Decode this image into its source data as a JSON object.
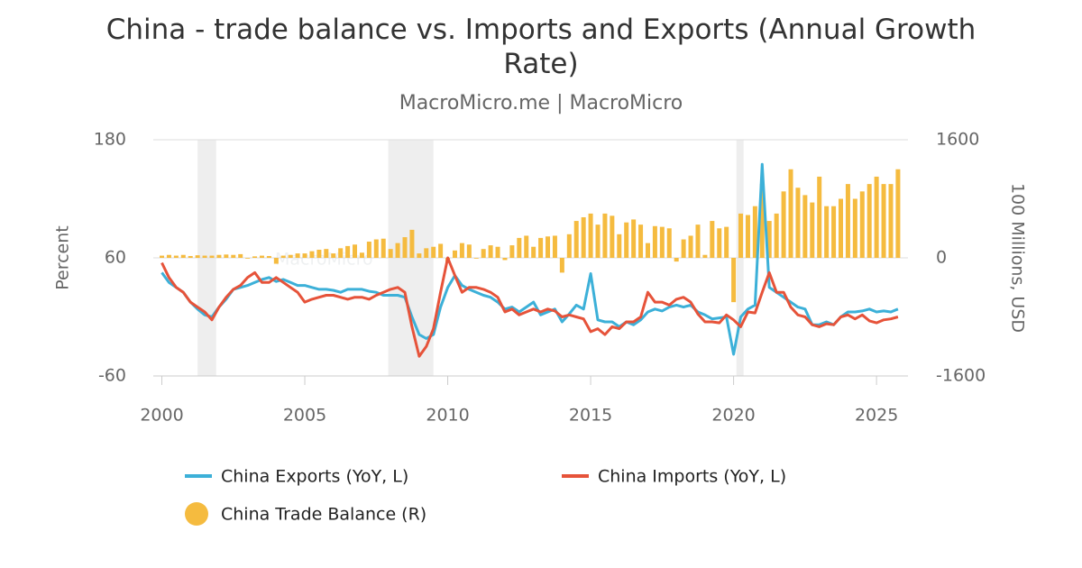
{
  "chart_data": {
    "type": "combo",
    "title": "China - trade balance vs. Imports and Exports (Annual Growth Rate)",
    "subtitle": "MacroMicro.me | MacroMicro",
    "watermark": "MacroMicro",
    "y_label": "Percent",
    "y2_label": "100 Millions, USD",
    "xlim": [
      1999.7,
      2026.1
    ],
    "xticks": [
      2000,
      2005,
      2010,
      2015,
      2020,
      2025
    ],
    "ylim": [
      -60,
      180
    ],
    "yticks": [
      -60,
      60,
      180
    ],
    "y2lim": [
      -1600,
      1600
    ],
    "y2ticks": [
      -1600,
      0,
      1600
    ],
    "grid": true,
    "shaded_ranges": [
      [
        2001.25,
        2001.9
      ],
      [
        2007.92,
        2009.5
      ],
      [
        2020.1,
        2020.35
      ]
    ],
    "x": [
      2000,
      2000.25,
      2000.5,
      2000.75,
      2001,
      2001.25,
      2001.5,
      2001.75,
      2002,
      2002.25,
      2002.5,
      2002.75,
      2003,
      2003.25,
      2003.5,
      2003.75,
      2004,
      2004.25,
      2004.5,
      2004.75,
      2005,
      2005.25,
      2005.5,
      2005.75,
      2006,
      2006.25,
      2006.5,
      2006.75,
      2007,
      2007.25,
      2007.5,
      2007.75,
      2008,
      2008.25,
      2008.5,
      2008.75,
      2009,
      2009.25,
      2009.5,
      2009.75,
      2010,
      2010.25,
      2010.5,
      2010.75,
      2011,
      2011.25,
      2011.5,
      2011.75,
      2012,
      2012.25,
      2012.5,
      2012.75,
      2013,
      2013.25,
      2013.5,
      2013.75,
      2014,
      2014.25,
      2014.5,
      2014.75,
      2015,
      2015.25,
      2015.5,
      2015.75,
      2016,
      2016.25,
      2016.5,
      2016.75,
      2017,
      2017.25,
      2017.5,
      2017.75,
      2018,
      2018.25,
      2018.5,
      2018.75,
      2019,
      2019.25,
      2019.5,
      2019.75,
      2020,
      2020.25,
      2020.5,
      2020.75,
      2021,
      2021.25,
      2021.5,
      2021.75,
      2022,
      2022.25,
      2022.5,
      2022.75,
      2023,
      2023.25,
      2023.5,
      2023.75,
      2024,
      2024.25,
      2024.5,
      2024.75,
      2025,
      2025.25,
      2025.5,
      2025.75
    ],
    "series": [
      {
        "name": "China Trade Balance (R)",
        "type": "bar",
        "axis": "y2",
        "color": "#f5bb3f",
        "values": [
          30,
          40,
          30,
          40,
          25,
          35,
          30,
          30,
          40,
          45,
          40,
          50,
          -10,
          20,
          30,
          25,
          -80,
          30,
          40,
          60,
          60,
          90,
          110,
          120,
          60,
          130,
          160,
          180,
          70,
          220,
          250,
          260,
          120,
          200,
          280,
          380,
          60,
          130,
          150,
          190,
          -70,
          100,
          200,
          180,
          -10,
          120,
          170,
          150,
          -30,
          170,
          270,
          300,
          150,
          270,
          290,
          300,
          -200,
          320,
          500,
          550,
          600,
          450,
          600,
          570,
          320,
          480,
          520,
          450,
          200,
          430,
          420,
          400,
          -50,
          250,
          300,
          450,
          40,
          500,
          400,
          420,
          -600,
          600,
          580,
          700,
          1000,
          500,
          600,
          900,
          1200,
          950,
          850,
          750,
          1100,
          700,
          700,
          800,
          1000,
          800,
          900,
          1000,
          1100,
          1000,
          1000,
          1200
        ]
      },
      {
        "name": "China Exports (YoY, L)",
        "type": "line",
        "color": "#3cb0d8",
        "values": [
          45,
          35,
          30,
          25,
          15,
          8,
          2,
          0,
          10,
          18,
          28,
          30,
          32,
          35,
          38,
          40,
          36,
          38,
          35,
          32,
          32,
          30,
          28,
          28,
          27,
          25,
          28,
          28,
          28,
          26,
          25,
          22,
          22,
          22,
          20,
          0,
          -18,
          -22,
          -18,
          10,
          30,
          42,
          32,
          28,
          25,
          22,
          20,
          15,
          8,
          10,
          5,
          10,
          15,
          2,
          5,
          8,
          -5,
          3,
          12,
          8,
          44,
          -3,
          -5,
          -5,
          -10,
          -5,
          -8,
          -3,
          5,
          8,
          6,
          10,
          12,
          10,
          12,
          5,
          2,
          -2,
          -1,
          0,
          -38,
          0,
          8,
          12,
          155,
          30,
          25,
          20,
          15,
          10,
          8,
          -8,
          -8,
          -5,
          -8,
          0,
          5,
          5,
          6,
          8,
          5,
          6,
          5,
          8
        ]
      },
      {
        "name": "China Imports (YoY, L)",
        "type": "line",
        "color": "#e6533a",
        "values": [
          55,
          40,
          30,
          25,
          15,
          10,
          5,
          -3,
          10,
          20,
          28,
          32,
          40,
          45,
          35,
          35,
          40,
          35,
          30,
          25,
          15,
          18,
          20,
          22,
          22,
          20,
          18,
          20,
          20,
          18,
          22,
          25,
          28,
          30,
          25,
          -10,
          -40,
          -30,
          -12,
          25,
          60,
          42,
          25,
          30,
          30,
          28,
          25,
          20,
          5,
          8,
          2,
          5,
          8,
          5,
          8,
          6,
          0,
          2,
          0,
          -2,
          -15,
          -12,
          -18,
          -10,
          -12,
          -5,
          -5,
          0,
          25,
          15,
          15,
          12,
          18,
          20,
          15,
          3,
          -5,
          -5,
          -6,
          2,
          -3,
          -10,
          5,
          4,
          25,
          45,
          25,
          25,
          10,
          2,
          0,
          -8,
          -10,
          -7,
          -8,
          0,
          2,
          -2,
          2,
          -4,
          -6,
          -3,
          -2,
          0
        ]
      }
    ],
    "legend": "bottom"
  }
}
